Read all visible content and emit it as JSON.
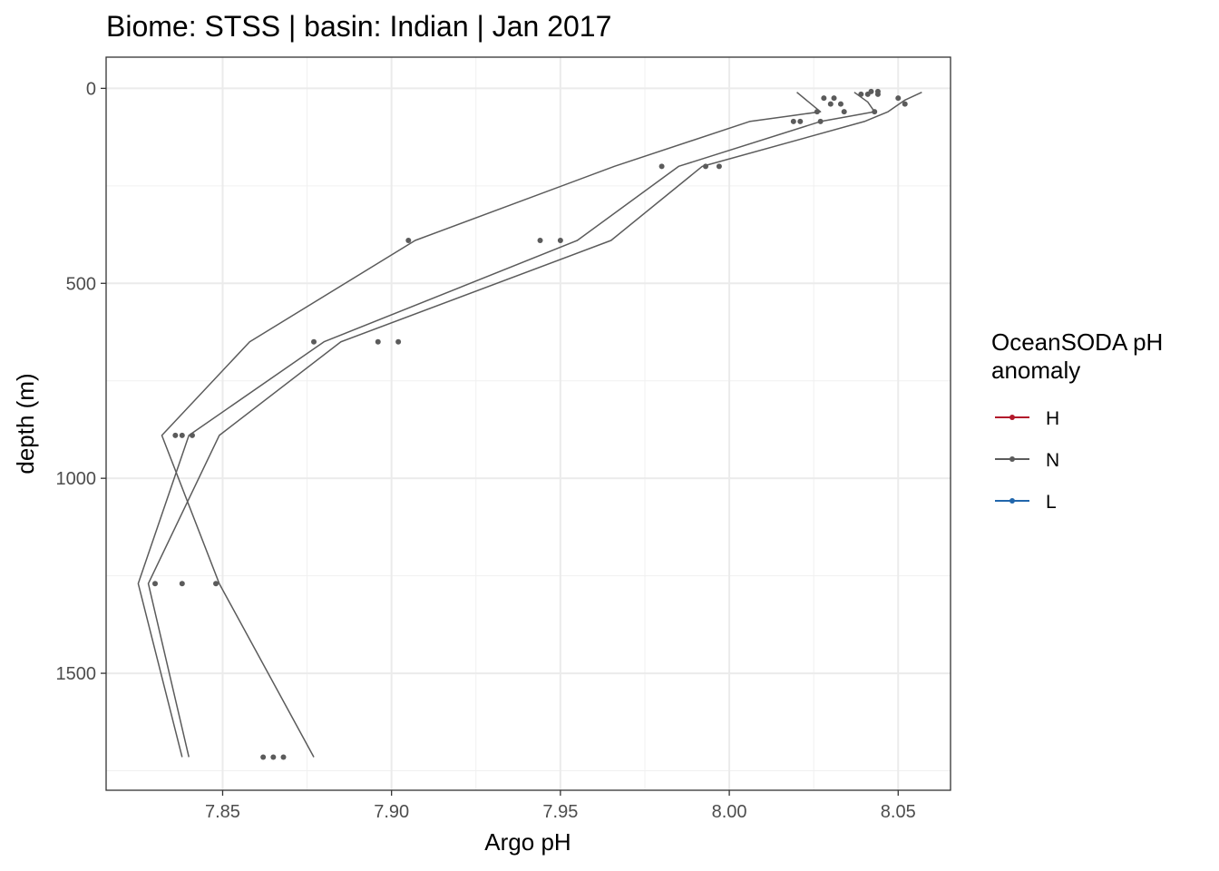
{
  "chart_data": {
    "type": "line",
    "title": "Biome: STSS | basin: Indian  | Jan 2017",
    "xlabel": "Argo pH",
    "ylabel": "depth (m)",
    "xlim": [
      7.8155,
      8.0655
    ],
    "ylim": [
      -80,
      1800
    ],
    "y_reversed": true,
    "x_ticks": [
      7.85,
      7.9,
      7.95,
      8.0,
      8.05
    ],
    "x_tick_labels": [
      "7.85",
      "7.90",
      "7.95",
      "8.00",
      "8.05"
    ],
    "y_ticks": [
      0,
      500,
      1000,
      1500
    ],
    "y_tick_labels": [
      "0",
      "500",
      "1000",
      "1500"
    ],
    "grid": true,
    "legend": {
      "title_lines": [
        "OceanSODA pH",
        "anomaly"
      ],
      "position": "right",
      "items": [
        {
          "label": "H",
          "color": "#B2182B"
        },
        {
          "label": "N",
          "color": "#5B5B5B"
        },
        {
          "label": "L",
          "color": "#2166AC"
        }
      ]
    },
    "series": [
      {
        "group": "N",
        "color": "#5B5B5B",
        "points": [
          {
            "ph": 8.02,
            "depth": 10
          },
          {
            "ph": 8.027,
            "depth": 60
          },
          {
            "ph": 8.006,
            "depth": 85
          },
          {
            "ph": 7.966,
            "depth": 200
          },
          {
            "ph": 7.907,
            "depth": 390
          },
          {
            "ph": 7.858,
            "depth": 650
          },
          {
            "ph": 7.832,
            "depth": 890
          },
          {
            "ph": 7.849,
            "depth": 1270
          },
          {
            "ph": 7.877,
            "depth": 1715
          }
        ]
      },
      {
        "group": "N",
        "color": "#5B5B5B",
        "points": [
          {
            "ph": 8.037,
            "depth": 10
          },
          {
            "ph": 8.041,
            "depth": 35
          },
          {
            "ph": 8.043,
            "depth": 60
          },
          {
            "ph": 8.027,
            "depth": 85
          },
          {
            "ph": 7.985,
            "depth": 200
          },
          {
            "ph": 7.955,
            "depth": 390
          },
          {
            "ph": 7.88,
            "depth": 650
          },
          {
            "ph": 7.84,
            "depth": 890
          },
          {
            "ph": 7.825,
            "depth": 1270
          },
          {
            "ph": 7.838,
            "depth": 1715
          }
        ]
      },
      {
        "group": "N",
        "color": "#5B5B5B",
        "points": [
          {
            "ph": 8.057,
            "depth": 10
          },
          {
            "ph": 8.052,
            "depth": 30
          },
          {
            "ph": 8.047,
            "depth": 60
          },
          {
            "ph": 8.04,
            "depth": 85
          },
          {
            "ph": 7.992,
            "depth": 200
          },
          {
            "ph": 7.965,
            "depth": 390
          },
          {
            "ph": 7.885,
            "depth": 650
          },
          {
            "ph": 7.849,
            "depth": 890
          },
          {
            "ph": 7.828,
            "depth": 1270
          },
          {
            "ph": 7.84,
            "depth": 1715
          }
        ]
      }
    ],
    "points": [
      {
        "ph": 8.028,
        "depth": 25
      },
      {
        "ph": 8.03,
        "depth": 40
      },
      {
        "ph": 8.031,
        "depth": 25
      },
      {
        "ph": 8.033,
        "depth": 40
      },
      {
        "ph": 8.034,
        "depth": 60
      },
      {
        "ph": 8.039,
        "depth": 15
      },
      {
        "ph": 8.041,
        "depth": 15
      },
      {
        "ph": 8.042,
        "depth": 8
      },
      {
        "ph": 8.043,
        "depth": 60
      },
      {
        "ph": 8.044,
        "depth": 8
      },
      {
        "ph": 8.044,
        "depth": 15
      },
      {
        "ph": 8.05,
        "depth": 25
      },
      {
        "ph": 8.052,
        "depth": 40
      },
      {
        "ph": 8.026,
        "depth": 60
      },
      {
        "ph": 8.019,
        "depth": 85
      },
      {
        "ph": 8.021,
        "depth": 85
      },
      {
        "ph": 8.027,
        "depth": 85
      },
      {
        "ph": 7.98,
        "depth": 200
      },
      {
        "ph": 7.993,
        "depth": 200
      },
      {
        "ph": 7.997,
        "depth": 200
      },
      {
        "ph": 7.905,
        "depth": 390
      },
      {
        "ph": 7.944,
        "depth": 390
      },
      {
        "ph": 7.95,
        "depth": 390
      },
      {
        "ph": 7.877,
        "depth": 650
      },
      {
        "ph": 7.896,
        "depth": 650
      },
      {
        "ph": 7.902,
        "depth": 650
      },
      {
        "ph": 7.836,
        "depth": 890
      },
      {
        "ph": 7.838,
        "depth": 890
      },
      {
        "ph": 7.841,
        "depth": 890
      },
      {
        "ph": 7.83,
        "depth": 1270
      },
      {
        "ph": 7.838,
        "depth": 1270
      },
      {
        "ph": 7.848,
        "depth": 1270
      },
      {
        "ph": 7.862,
        "depth": 1715
      },
      {
        "ph": 7.865,
        "depth": 1715
      },
      {
        "ph": 7.868,
        "depth": 1715
      }
    ]
  }
}
